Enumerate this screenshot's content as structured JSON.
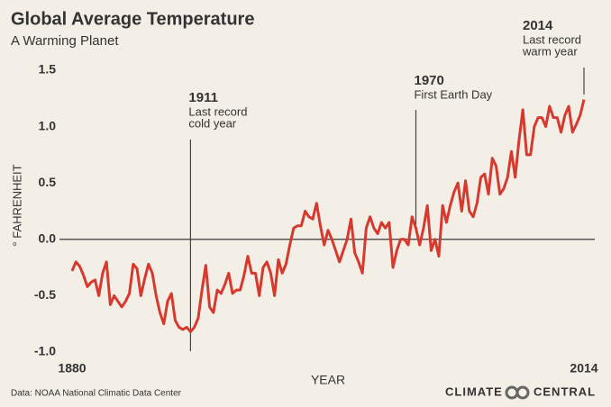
{
  "chart_data": {
    "type": "line",
    "title": "Global Average Temperature",
    "subtitle": "A Warming Planet",
    "ylabel": "° FAHRENHEIT",
    "xlabel": "YEAR",
    "source": "Data: NOAA National Climatic Data Center",
    "logo": [
      "CLIMATE",
      "CENTRAL"
    ],
    "xlim": [
      1880,
      2014
    ],
    "xticks": [
      1880,
      2014
    ],
    "ylim": [
      -1.0,
      1.5
    ],
    "yticks": [
      {
        "value": -1.0,
        "label": "-1.0"
      },
      -0.5,
      {
        "value": 0.0,
        "label": "0.0"
      },
      0.5,
      {
        "value": 1.0,
        "label": "1.0"
      },
      1.5
    ],
    "annotations": [
      {
        "x": 1911,
        "label": "1911",
        "lines": [
          "Last record",
          "cold year"
        ]
      },
      {
        "x": 1970,
        "label": "1970",
        "lines": [
          "First Earth Day"
        ]
      },
      {
        "x": 2014,
        "label": "2014",
        "lines": [
          "Last record",
          "warm  year"
        ]
      }
    ],
    "x": [
      1880,
      1881,
      1882,
      1883,
      1884,
      1885,
      1886,
      1887,
      1888,
      1889,
      1890,
      1891,
      1892,
      1893,
      1894,
      1895,
      1896,
      1897,
      1898,
      1899,
      1900,
      1901,
      1902,
      1903,
      1904,
      1905,
      1906,
      1907,
      1908,
      1909,
      1910,
      1911,
      1912,
      1913,
      1914,
      1915,
      1916,
      1917,
      1918,
      1919,
      1920,
      1921,
      1922,
      1923,
      1924,
      1925,
      1926,
      1927,
      1928,
      1929,
      1930,
      1931,
      1932,
      1933,
      1934,
      1935,
      1936,
      1937,
      1938,
      1939,
      1940,
      1941,
      1942,
      1943,
      1944,
      1945,
      1946,
      1947,
      1948,
      1949,
      1950,
      1951,
      1952,
      1953,
      1954,
      1955,
      1956,
      1957,
      1958,
      1959,
      1960,
      1961,
      1962,
      1963,
      1964,
      1965,
      1966,
      1967,
      1968,
      1969,
      1970,
      1971,
      1972,
      1973,
      1974,
      1975,
      1976,
      1977,
      1978,
      1979,
      1980,
      1981,
      1982,
      1983,
      1984,
      1985,
      1986,
      1987,
      1988,
      1989,
      1990,
      1991,
      1992,
      1993,
      1994,
      1995,
      1996,
      1997,
      1998,
      1999,
      2000,
      2001,
      2002,
      2003,
      2004,
      2005,
      2006,
      2007,
      2008,
      2009,
      2010,
      2011,
      2012,
      2013,
      2014
    ],
    "series": [
      {
        "name": "Global average temperature",
        "color": "#d63a2f",
        "values": [
          -0.28,
          -0.2,
          -0.24,
          -0.32,
          -0.42,
          -0.38,
          -0.36,
          -0.5,
          -0.3,
          -0.2,
          -0.58,
          -0.5,
          -0.55,
          -0.6,
          -0.55,
          -0.48,
          -0.22,
          -0.26,
          -0.5,
          -0.35,
          -0.22,
          -0.3,
          -0.5,
          -0.65,
          -0.75,
          -0.55,
          -0.48,
          -0.72,
          -0.78,
          -0.8,
          -0.78,
          -0.82,
          -0.78,
          -0.7,
          -0.45,
          -0.23,
          -0.6,
          -0.65,
          -0.45,
          -0.48,
          -0.4,
          -0.3,
          -0.48,
          -0.45,
          -0.45,
          -0.32,
          -0.15,
          -0.3,
          -0.3,
          -0.5,
          -0.25,
          -0.2,
          -0.3,
          -0.5,
          -0.18,
          -0.3,
          -0.22,
          -0.05,
          0.1,
          0.12,
          0.12,
          0.25,
          0.2,
          0.18,
          0.32,
          0.12,
          -0.05,
          0.08,
          0.0,
          -0.1,
          -0.2,
          -0.1,
          0.0,
          0.18,
          -0.12,
          -0.2,
          -0.3,
          0.1,
          0.2,
          0.1,
          0.05,
          0.15,
          0.1,
          0.15,
          -0.25,
          -0.1,
          0.0,
          0.0,
          -0.05,
          0.2,
          0.1,
          -0.05,
          0.1,
          0.3,
          -0.1,
          0.0,
          -0.15,
          0.3,
          0.15,
          0.3,
          0.42,
          0.5,
          0.25,
          0.52,
          0.25,
          0.2,
          0.32,
          0.55,
          0.58,
          0.4,
          0.72,
          0.65,
          0.4,
          0.45,
          0.55,
          0.78,
          0.55,
          0.88,
          1.15,
          0.75,
          0.75,
          1.0,
          1.08,
          1.08,
          1.0,
          1.18,
          1.08,
          1.08,
          0.95,
          1.1,
          1.18,
          0.95,
          1.02,
          1.1,
          1.24
        ]
      }
    ]
  }
}
